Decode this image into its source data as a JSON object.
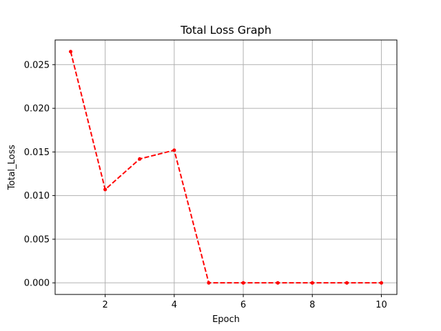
{
  "chart_data": {
    "type": "line",
    "title": "Total Loss Graph",
    "xlabel": "Epoch",
    "ylabel": "Total_Loss",
    "x": [
      1,
      2,
      3,
      4,
      5,
      6,
      7,
      8,
      9,
      10
    ],
    "series": [
      {
        "values": [
          0.0265,
          0.0107,
          0.0142,
          0.0152,
          0.0,
          0.0,
          0.0,
          0.0,
          0.0,
          0.0
        ],
        "color": "#ff0000",
        "line_style": "dashed",
        "marker": "point"
      }
    ],
    "xlim": [
      0.55,
      10.45
    ],
    "ylim": [
      -0.00133,
      0.02783
    ],
    "xticks": [
      2,
      4,
      6,
      8,
      10
    ],
    "xtick_labels": [
      "2",
      "4",
      "6",
      "8",
      "10"
    ],
    "yticks": [
      0.0,
      0.005,
      0.01,
      0.015,
      0.02,
      0.025
    ],
    "ytick_labels": [
      "0.000",
      "0.005",
      "0.010",
      "0.015",
      "0.020",
      "0.025"
    ],
    "grid": true,
    "grid_color": "#b0b0b0"
  }
}
